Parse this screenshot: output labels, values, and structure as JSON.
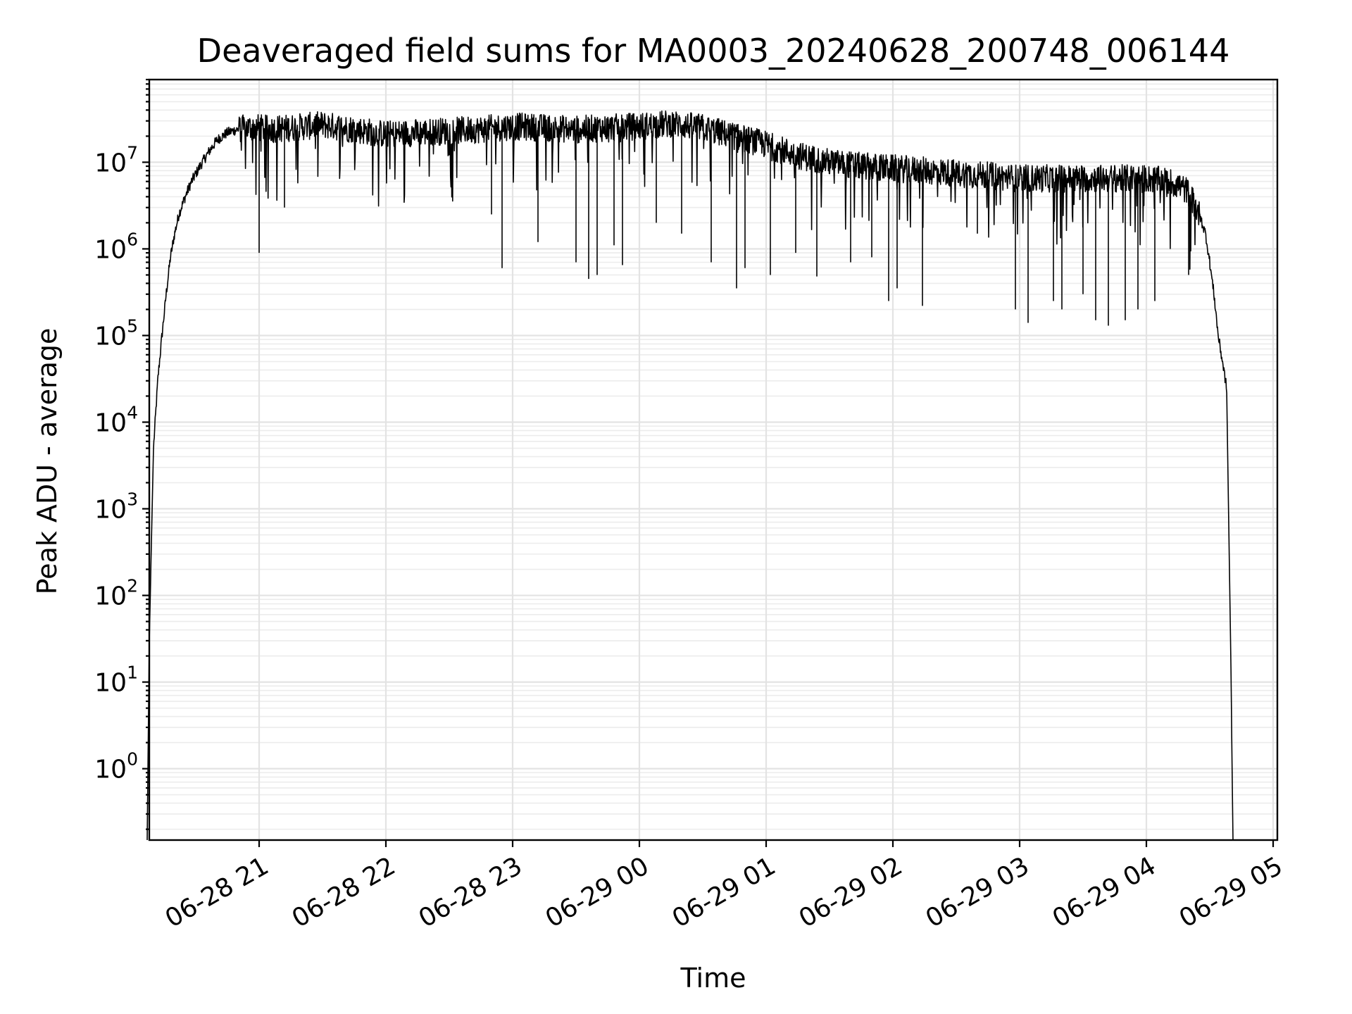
{
  "chart_data": {
    "type": "line",
    "title": "Deaveraged field sums for MA0003_20240628_200748_006144",
    "xlabel": "Time",
    "ylabel": "Peak ADU - average",
    "xscale": "time",
    "yscale": "log",
    "xlim": [
      "2024-06-28 20:08",
      "2024-06-29 05:02"
    ],
    "ylim": [
      0.15,
      90000000
    ],
    "x_tick_labels": [
      "06-28 21",
      "06-28 22",
      "06-28 23",
      "06-29 00",
      "06-29 01",
      "06-29 02",
      "06-29 03",
      "06-29 04",
      "06-29 05"
    ],
    "y_tick_labels": [
      {
        "base": "10",
        "exp": "0",
        "value": 1
      },
      {
        "base": "10",
        "exp": "1",
        "value": 10
      },
      {
        "base": "10",
        "exp": "2",
        "value": 100
      },
      {
        "base": "10",
        "exp": "3",
        "value": 1000
      },
      {
        "base": "10",
        "exp": "4",
        "value": 10000
      },
      {
        "base": "10",
        "exp": "5",
        "value": 100000
      },
      {
        "base": "10",
        "exp": "6",
        "value": 1000000
      },
      {
        "base": "10",
        "exp": "7",
        "value": 10000000
      }
    ],
    "grid": true,
    "line_color": "#000000",
    "series": [
      {
        "x": [
          "2024-06-28 20:07",
          "2024-06-28 20:08",
          "2024-06-28 20:10",
          "2024-06-28 20:12",
          "2024-06-28 20:14",
          "2024-06-28 20:16",
          "2024-06-28 20:18",
          "2024-06-28 20:20",
          "2024-06-28 20:22",
          "2024-06-28 20:25",
          "2024-06-28 20:28",
          "2024-06-28 20:32",
          "2024-06-28 20:36",
          "2024-06-28 20:40",
          "2024-06-28 20:45",
          "2024-06-28 20:50",
          "2024-06-28 20:55",
          "2024-06-28 21:00",
          "2024-06-28 21:05",
          "2024-06-28 21:15",
          "2024-06-28 21:30",
          "2024-06-28 21:45",
          "2024-06-28 22:00",
          "2024-06-28 22:15",
          "2024-06-28 22:30",
          "2024-06-28 22:45",
          "2024-06-28 23:00",
          "2024-06-28 23:15",
          "2024-06-28 23:30",
          "2024-06-28 23:45",
          "2024-06-29 00:00",
          "2024-06-29 00:15",
          "2024-06-29 00:30",
          "2024-06-29 00:45",
          "2024-06-29 01:00",
          "2024-06-29 01:15",
          "2024-06-29 01:30",
          "2024-06-29 01:45",
          "2024-06-29 02:00",
          "2024-06-29 02:15",
          "2024-06-29 02:30",
          "2024-06-29 02:45",
          "2024-06-29 03:00",
          "2024-06-29 03:15",
          "2024-06-29 03:30",
          "2024-06-29 03:45",
          "2024-06-29 04:00",
          "2024-06-29 04:10",
          "2024-06-29 04:15",
          "2024-06-29 04:20",
          "2024-06-29 04:25",
          "2024-06-29 04:28",
          "2024-06-29 04:30",
          "2024-06-29 04:32",
          "2024-06-29 04:34",
          "2024-06-29 04:36",
          "2024-06-29 04:38",
          "2024-06-29 04:40",
          "2024-06-29 04:41",
          "2024-06-29 04:42"
        ],
        "y": [
          0.15,
          30,
          5000,
          30000,
          100000,
          300000,
          800000,
          1500000,
          2500000,
          4000000,
          6000000,
          9000000,
          13000000,
          18000000,
          22000000,
          24000000,
          25000000,
          25000000,
          24000000,
          25000000,
          27000000,
          24000000,
          21000000,
          22000000,
          23000000,
          24000000,
          26000000,
          25000000,
          24000000,
          25000000,
          26000000,
          28000000,
          25000000,
          20000000,
          16000000,
          12000000,
          10000000,
          9000000,
          8500000,
          8000000,
          7500000,
          7000000,
          6500000,
          6500000,
          6500000,
          6500000,
          6500000,
          6000000,
          5500000,
          4500000,
          2500000,
          1500000,
          700000,
          300000,
          100000,
          50000,
          25000,
          16,
          0.15,
          0.15
        ],
        "dips": [
          {
            "x": "2024-06-28 21:00",
            "y": 900000
          },
          {
            "x": "2024-06-28 21:12",
            "y": 3000000
          },
          {
            "x": "2024-06-28 22:50",
            "y": 2500000
          },
          {
            "x": "2024-06-28 22:55",
            "y": 600000
          },
          {
            "x": "2024-06-28 23:12",
            "y": 1200000
          },
          {
            "x": "2024-06-28 23:30",
            "y": 700000
          },
          {
            "x": "2024-06-28 23:36",
            "y": 450000
          },
          {
            "x": "2024-06-28 23:40",
            "y": 500000
          },
          {
            "x": "2024-06-28 23:48",
            "y": 1100000
          },
          {
            "x": "2024-06-28 23:52",
            "y": 650000
          },
          {
            "x": "2024-06-29 00:08",
            "y": 2000000
          },
          {
            "x": "2024-06-29 00:20",
            "y": 1500000
          },
          {
            "x": "2024-06-29 00:34",
            "y": 700000
          },
          {
            "x": "2024-06-29 00:46",
            "y": 350000
          },
          {
            "x": "2024-06-29 00:50",
            "y": 600000
          },
          {
            "x": "2024-06-29 01:02",
            "y": 500000
          },
          {
            "x": "2024-06-29 01:14",
            "y": 900000
          },
          {
            "x": "2024-06-29 01:24",
            "y": 480000
          },
          {
            "x": "2024-06-29 01:40",
            "y": 700000
          },
          {
            "x": "2024-06-29 01:50",
            "y": 800000
          },
          {
            "x": "2024-06-29 01:58",
            "y": 250000
          },
          {
            "x": "2024-06-29 02:02",
            "y": 350000
          },
          {
            "x": "2024-06-29 02:14",
            "y": 220000
          },
          {
            "x": "2024-06-29 02:40",
            "y": 1500000
          },
          {
            "x": "2024-06-29 02:58",
            "y": 200000
          },
          {
            "x": "2024-06-29 03:04",
            "y": 140000
          },
          {
            "x": "2024-06-29 03:16",
            "y": 250000
          },
          {
            "x": "2024-06-29 03:20",
            "y": 200000
          },
          {
            "x": "2024-06-29 03:30",
            "y": 300000
          },
          {
            "x": "2024-06-29 03:36",
            "y": 150000
          },
          {
            "x": "2024-06-29 03:42",
            "y": 130000
          },
          {
            "x": "2024-06-29 03:50",
            "y": 150000
          },
          {
            "x": "2024-06-29 03:56",
            "y": 200000
          },
          {
            "x": "2024-06-29 04:04",
            "y": 250000
          },
          {
            "x": "2024-06-29 04:20",
            "y": 500000
          }
        ]
      }
    ]
  }
}
